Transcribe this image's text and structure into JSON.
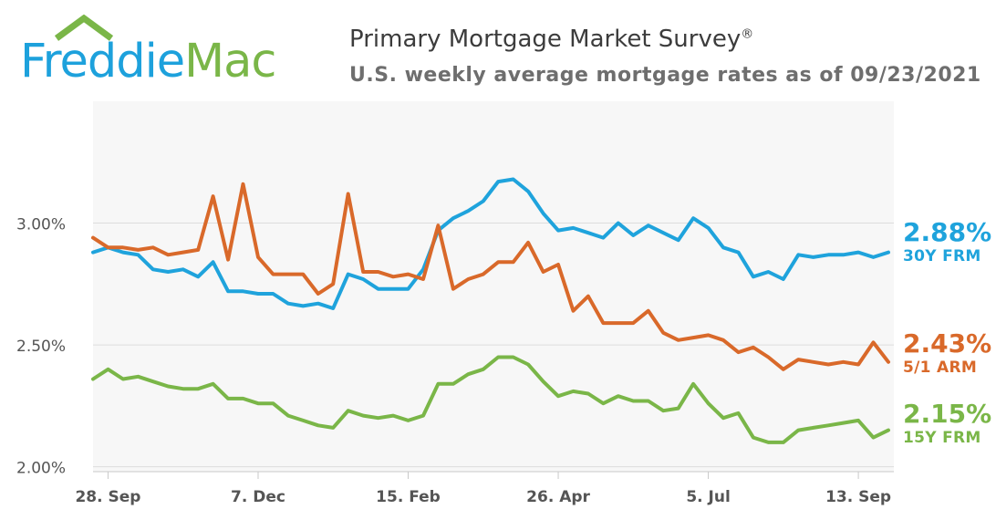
{
  "brand": {
    "name_part1": "Freddie",
    "name_part2": "Mac"
  },
  "header": {
    "title": "Primary Mortgage Market Survey",
    "title_mark": "®",
    "subtitle": "U.S. weekly average mortgage rates as of 09/23/2021"
  },
  "colors": {
    "frm30": "#1fa3dc",
    "arm51": "#d9692a",
    "frm15": "#7ab648",
    "grid": "#dddddd",
    "plot_bg": "#f7f7f7"
  },
  "chart_data": {
    "type": "line",
    "title": "Primary Mortgage Market Survey",
    "subtitle": "U.S. weekly average mortgage rates as of 09/23/2021",
    "ylim": [
      1.98,
      3.5
    ],
    "yticks": [
      2.0,
      2.5,
      3.0
    ],
    "ytick_labels": [
      "2.00%",
      "2.50%",
      "3.00%"
    ],
    "xtick_labels": [
      "28. Sep",
      "7. Dec",
      "15. Feb",
      "26. Apr",
      "5. Jul",
      "13. Sep"
    ],
    "xtick_indices": [
      1,
      11,
      21,
      31,
      41,
      51
    ],
    "series": [
      {
        "name": "30Y FRM",
        "current_label": "2.88%",
        "values": [
          2.88,
          2.9,
          2.88,
          2.87,
          2.81,
          2.8,
          2.81,
          2.78,
          2.84,
          2.72,
          2.72,
          2.71,
          2.71,
          2.67,
          2.66,
          2.67,
          2.65,
          2.79,
          2.77,
          2.73,
          2.73,
          2.73,
          2.81,
          2.97,
          3.02,
          3.05,
          3.09,
          3.17,
          3.18,
          3.13,
          3.04,
          2.97,
          2.98,
          2.96,
          2.94,
          3.0,
          2.95,
          2.99,
          2.96,
          2.93,
          3.02,
          2.98,
          2.9,
          2.88,
          2.78,
          2.8,
          2.77,
          2.87,
          2.86,
          2.87,
          2.87,
          2.88,
          2.86,
          2.88
        ]
      },
      {
        "name": "5/1 ARM",
        "current_label": "2.43%",
        "values": [
          2.94,
          2.9,
          2.9,
          2.89,
          2.9,
          2.87,
          2.88,
          2.89,
          3.11,
          2.85,
          3.16,
          2.86,
          2.79,
          2.79,
          2.79,
          2.71,
          2.75,
          3.12,
          2.8,
          2.8,
          2.78,
          2.79,
          2.77,
          2.99,
          2.73,
          2.77,
          2.79,
          2.84,
          2.84,
          2.92,
          2.8,
          2.83,
          2.64,
          2.7,
          2.59,
          2.59,
          2.59,
          2.64,
          2.55,
          2.52,
          2.53,
          2.54,
          2.52,
          2.47,
          2.49,
          2.45,
          2.4,
          2.44,
          2.43,
          2.42,
          2.43,
          2.42,
          2.51,
          2.43
        ]
      },
      {
        "name": "15Y FRM",
        "current_label": "2.15%",
        "values": [
          2.36,
          2.4,
          2.36,
          2.37,
          2.35,
          2.33,
          2.32,
          2.32,
          2.34,
          2.28,
          2.28,
          2.26,
          2.26,
          2.21,
          2.19,
          2.17,
          2.16,
          2.23,
          2.21,
          2.2,
          2.21,
          2.19,
          2.21,
          2.34,
          2.34,
          2.38,
          2.4,
          2.45,
          2.45,
          2.42,
          2.35,
          2.29,
          2.31,
          2.3,
          2.26,
          2.29,
          2.27,
          2.27,
          2.23,
          2.24,
          2.34,
          2.26,
          2.2,
          2.22,
          2.12,
          2.1,
          2.1,
          2.15,
          2.16,
          2.17,
          2.18,
          2.19,
          2.12,
          2.15
        ]
      }
    ]
  }
}
